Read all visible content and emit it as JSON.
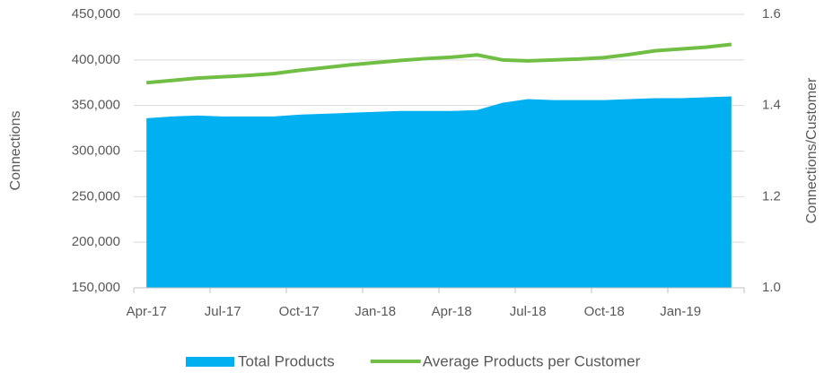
{
  "chart_data": {
    "type": "area_line",
    "categories": [
      "Apr-17",
      null,
      null,
      "Jul-17",
      null,
      null,
      "Oct-17",
      null,
      null,
      "Jan-18",
      null,
      null,
      "Apr-18",
      null,
      null,
      "Jul-18",
      null,
      null,
      "Oct-18",
      null,
      null,
      "Jan-19",
      null,
      null
    ],
    "series": [
      {
        "name": "Total Products",
        "color": "#00b0f0",
        "type": "area",
        "values": [
          336000,
          338000,
          339000,
          338000,
          338000,
          338000,
          340000,
          341000,
          342000,
          343000,
          344000,
          344000,
          344000,
          345000,
          353000,
          357000,
          356000,
          356000,
          356000,
          357000,
          358000,
          358000,
          359000,
          360000
        ]
      },
      {
        "name": "Average Products per Customer",
        "color": "#70bf44",
        "type": "line",
        "axis": "y2",
        "values": [
          1.45,
          1.455,
          1.46,
          1.463,
          1.466,
          1.47,
          1.477,
          1.483,
          1.489,
          1.494,
          1.499,
          1.503,
          1.506,
          1.511,
          1.5,
          1.498,
          1.5,
          1.502,
          1.505,
          1.512,
          1.52,
          1.524,
          1.528,
          1.534
        ]
      }
    ],
    "ylabel": "Connections",
    "y2label": "Connections/Customer",
    "ylim": [
      150000,
      450000
    ],
    "yticks": [
      {
        "value": 150000,
        "label": "150,000"
      },
      {
        "value": 200000,
        "label": "200,000"
      },
      {
        "value": 250000,
        "label": "250,000"
      },
      {
        "value": 300000,
        "label": "300,000"
      },
      {
        "value": 350000,
        "label": "350,000"
      },
      {
        "value": 400000,
        "label": "400,000"
      },
      {
        "value": 450000,
        "label": "450,000"
      }
    ],
    "y2lim": [
      1.0,
      1.6
    ],
    "y2ticks": [
      {
        "value": 1.0,
        "label": "1.0"
      },
      1.2,
      1.4,
      1.6
    ],
    "grid": true,
    "legend": "bottom"
  }
}
